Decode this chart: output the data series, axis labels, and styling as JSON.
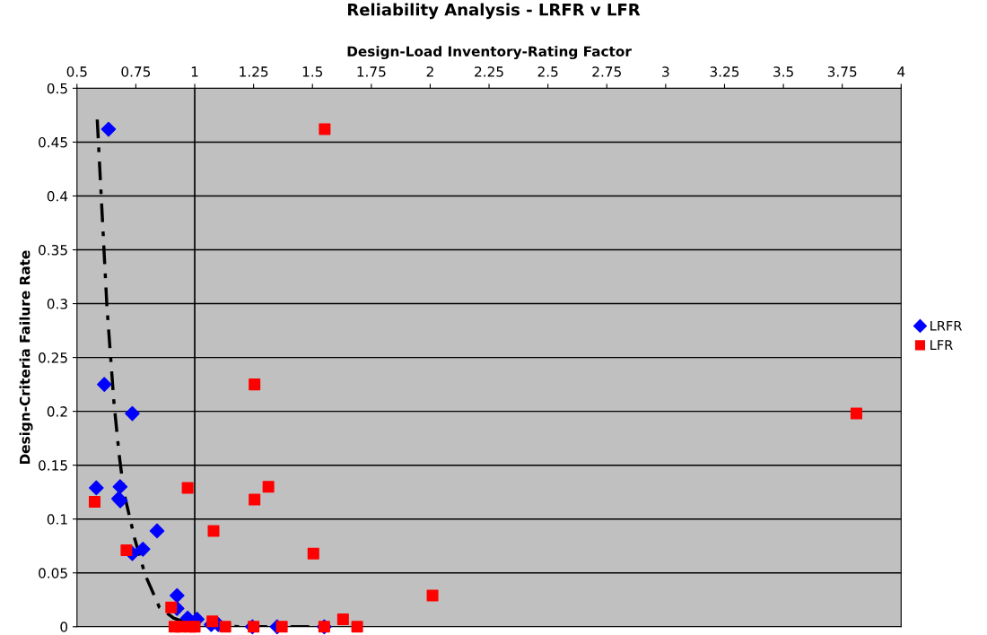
{
  "chart_data": {
    "type": "scatter",
    "title": "Reliability Analysis - LRFR v LFR",
    "xlabel": "Design-Load Inventory-Rating Factor",
    "ylabel": "Design-Criteria Failure Rate",
    "xlim": [
      0.5,
      4
    ],
    "xticks": [
      0.5,
      0.75,
      1,
      1.25,
      1.5,
      1.75,
      2,
      2.25,
      2.5,
      2.75,
      3,
      3.25,
      3.5,
      3.75,
      4
    ],
    "ylim": [
      0,
      0.5
    ],
    "yticks": [
      0,
      0.05,
      0.1,
      0.15,
      0.2,
      0.25,
      0.3,
      0.35,
      0.4,
      0.45,
      0.5
    ],
    "grid": "y",
    "legend": "right",
    "ref_lines": [
      {
        "axis": "x",
        "value": 1,
        "label": null,
        "color": "#000000",
        "line_style": "solid"
      }
    ],
    "series": [
      {
        "name": "LRFR",
        "color": "#0000ff",
        "marker": "diamond",
        "x": [
          0.634,
          0.616,
          0.735,
          0.582,
          0.683,
          0.677,
          0.684,
          0.84,
          0.78,
          0.735,
          0.925,
          0.925,
          0.97,
          1.01,
          1.07,
          1.1,
          1.245,
          1.35,
          1.55
        ],
        "values": [
          0.462,
          0.225,
          0.198,
          0.129,
          0.13,
          0.119,
          0.117,
          0.089,
          0.072,
          0.068,
          0.029,
          0.017,
          0.008,
          0.007,
          0.002,
          0.002,
          0,
          0,
          0
        ]
      },
      {
        "name": "LFR",
        "color": "#ff0000",
        "marker": "square",
        "x": [
          1.552,
          1.254,
          3.81,
          0.575,
          0.97,
          1.08,
          1.254,
          1.313,
          0.71,
          1.504,
          2.01,
          0.9,
          0.914,
          0.94,
          0.98,
          1.0,
          1.075,
          1.13,
          1.25,
          1.37,
          1.55,
          1.63,
          1.69
        ],
        "values": [
          0.462,
          0.225,
          0.198,
          0.116,
          0.129,
          0.089,
          0.118,
          0.13,
          0.071,
          0.068,
          0.029,
          0.018,
          0,
          0,
          0,
          0,
          0.005,
          0,
          0,
          0,
          0,
          0.007,
          0
        ]
      },
      {
        "type": "line",
        "color": "#000000",
        "marker": "none",
        "line_style": "dashed",
        "x": [
          0.586,
          0.627,
          0.657,
          0.68,
          0.7,
          0.746,
          0.79,
          0.85,
          0.91,
          1.0,
          1.2,
          1.55
        ],
        "values": [
          0.471,
          0.298,
          0.208,
          0.158,
          0.124,
          0.081,
          0.048,
          0.018,
          0.008,
          0.001,
          0,
          0
        ]
      }
    ]
  }
}
